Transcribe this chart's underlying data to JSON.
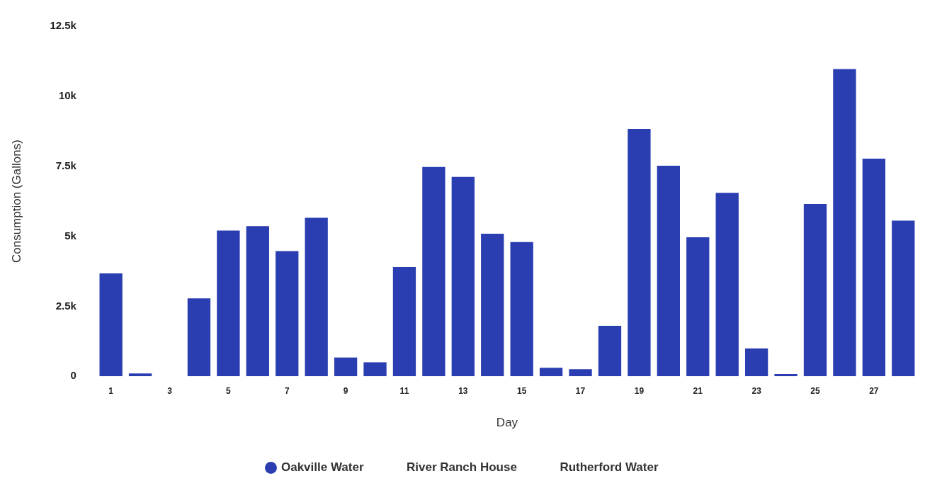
{
  "chart_data": {
    "type": "bar",
    "xlabel": "Day",
    "ylabel": "Consumption (Gallons)",
    "categories": [
      "1",
      null,
      "3",
      null,
      "5",
      null,
      "7",
      null,
      "9",
      null,
      "11",
      null,
      "13",
      null,
      "15",
      null,
      "17",
      null,
      "19",
      null,
      "21",
      null,
      "23",
      null,
      "25",
      null,
      "27",
      null
    ],
    "series": [
      {
        "name": "Oakville Water",
        "color": "#2a3eb1",
        "values": [
          3670,
          100,
          null,
          2780,
          5200,
          5360,
          4470,
          5660,
          670,
          500,
          3900,
          7470,
          7120,
          5090,
          4790,
          300,
          250,
          1800,
          8830,
          7520,
          4960,
          6550,
          990,
          80,
          6150,
          10970,
          7770,
          5560
        ]
      },
      {
        "name": "River Ranch House",
        "values": [
          null,
          null,
          null,
          null,
          null,
          null,
          null,
          null,
          null,
          null,
          null,
          null,
          null,
          null,
          null,
          null,
          null,
          null,
          null,
          null,
          null,
          null,
          null,
          null,
          null,
          null,
          null,
          null
        ]
      },
      {
        "name": "Rutherford Water",
        "values": [
          null,
          null,
          null,
          null,
          null,
          null,
          null,
          null,
          null,
          null,
          null,
          null,
          null,
          null,
          null,
          null,
          null,
          null,
          null,
          null,
          null,
          null,
          null,
          null,
          null,
          null,
          null,
          null
        ]
      }
    ],
    "ylim": [
      0,
      12500
    ],
    "yticks": [
      0,
      {
        "value": 2500,
        "label": "2.5k"
      },
      {
        "value": 5000,
        "label": "5k"
      },
      {
        "value": 7500,
        "label": "7.5k"
      },
      {
        "value": 10000,
        "label": "10k"
      },
      {
        "value": 12500,
        "label": "12.5k"
      }
    ],
    "grid": false,
    "legend": "bottom"
  }
}
